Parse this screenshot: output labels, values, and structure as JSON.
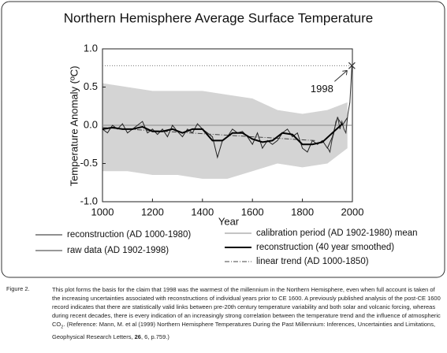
{
  "chart_data": {
    "type": "line",
    "title": "Northern Hemisphere Average Surface Temperature",
    "x_label": "Year",
    "y_label": "Temperature Anomaly (ºC)",
    "xlim": [
      1000,
      2000
    ],
    "xticks": [
      1000,
      1200,
      1400,
      1600,
      1800,
      2000
    ],
    "ylim": [
      -1,
      1
    ],
    "yticks": [
      {
        "value": -1,
        "label": "-1.0"
      },
      -0.5,
      {
        "value": 0,
        "label": "0.0"
      },
      0.5,
      {
        "value": 1,
        "label": "1.0"
      }
    ],
    "band": {
      "color": "#d4d4d4",
      "x": [
        1000,
        1100,
        1200,
        1300,
        1400,
        1500,
        1600,
        1700,
        1800,
        1900,
        1980
      ],
      "upper": [
        0.55,
        0.5,
        0.45,
        0.45,
        0.45,
        0.4,
        0.35,
        0.2,
        0.15,
        0.2,
        0.3
      ],
      "lower": [
        -0.6,
        -0.6,
        -0.65,
        -0.65,
        -0.7,
        -0.7,
        -0.6,
        -0.5,
        -0.55,
        -0.5,
        -0.3
      ]
    },
    "series": [
      {
        "name": "reconstruction (AD 1000-1980)",
        "color": "#222222",
        "style": "thin",
        "x": [
          1000,
          1020,
          1040,
          1060,
          1080,
          1100,
          1120,
          1140,
          1160,
          1180,
          1200,
          1220,
          1240,
          1260,
          1280,
          1300,
          1320,
          1340,
          1360,
          1380,
          1400,
          1420,
          1440,
          1460,
          1480,
          1500,
          1520,
          1540,
          1560,
          1580,
          1600,
          1620,
          1640,
          1660,
          1680,
          1700,
          1720,
          1740,
          1760,
          1780,
          1800,
          1820,
          1840,
          1860,
          1880,
          1900,
          1920,
          1940,
          1960,
          1980
        ],
        "values": [
          -0.05,
          -0.1,
          0.0,
          -0.05,
          0.02,
          -0.1,
          -0.05,
          0.0,
          0.05,
          -0.1,
          -0.05,
          -0.12,
          -0.05,
          -0.15,
          0.0,
          -0.08,
          -0.15,
          -0.05,
          -0.1,
          0.02,
          -0.05,
          -0.1,
          -0.15,
          -0.42,
          -0.2,
          -0.15,
          -0.05,
          -0.1,
          -0.08,
          -0.15,
          -0.25,
          -0.1,
          -0.3,
          -0.2,
          -0.25,
          -0.2,
          -0.1,
          -0.05,
          -0.15,
          -0.1,
          -0.3,
          -0.35,
          -0.2,
          -0.25,
          -0.2,
          -0.3,
          -0.15,
          0.1,
          0.0,
          0.1
        ]
      },
      {
        "name": "raw data (AD 1902-1998)",
        "color": "#333333",
        "style": "thin",
        "x": [
          1902,
          1910,
          1918,
          1926,
          1934,
          1942,
          1950,
          1958,
          1966,
          1974,
          1982,
          1990,
          1998
        ],
        "values": [
          -0.3,
          -0.35,
          -0.2,
          -0.1,
          0.05,
          0.1,
          -0.05,
          0.05,
          -0.05,
          -0.1,
          0.15,
          0.3,
          0.78
        ]
      },
      {
        "name": "calibration period (AD 1902-1980) mean",
        "color": "#888888",
        "style": "thin",
        "x": [
          1000,
          2000
        ],
        "values": [
          0,
          0
        ]
      },
      {
        "name": "reconstruction (40 year smoothed)",
        "color": "#000000",
        "style": "thick",
        "x": [
          1000,
          1040,
          1080,
          1120,
          1160,
          1200,
          1240,
          1280,
          1320,
          1360,
          1400,
          1440,
          1480,
          1520,
          1560,
          1600,
          1640,
          1680,
          1720,
          1760,
          1800,
          1840,
          1880,
          1920,
          1960
        ],
        "values": [
          -0.05,
          -0.03,
          -0.05,
          -0.05,
          -0.02,
          -0.08,
          -0.08,
          -0.05,
          -0.1,
          -0.05,
          -0.05,
          -0.2,
          -0.2,
          -0.1,
          -0.1,
          -0.18,
          -0.22,
          -0.2,
          -0.1,
          -0.12,
          -0.25,
          -0.25,
          -0.22,
          -0.1,
          0.02
        ]
      },
      {
        "name": "linear trend (AD 1000-1850)",
        "color": "#444444",
        "style": "dashdot",
        "x": [
          1000,
          1850
        ],
        "values": [
          -0.03,
          -0.2
        ]
      }
    ],
    "annotation": {
      "text": "1998",
      "x": 1998,
      "y": 0.78
    },
    "caption": {
      "label": "Figure 2.",
      "text_1": "This plot forms the basis for the claim that 1998 was the warmest of the millennium in the Northern Hemisphere, even when full account is taken of the increasing uncertainties associated with reconstructions of individual years prior to CE 1600. A previously published analysis of the post-CE 1600 record indicates that there are statistically valid links between pre-20th century temperature variability and both solar and volcanic forcing, whereas during recent decades, there is every indication of an increasingly strong correlation between the temperature trend and the influence of atmospheric CO",
      "subscript": "2",
      "text_2": ". (Reference: Mann, M. et al (1999) Northern Hemisphere Temperatures During the Past Millennium: Inferences, Uncertainties and Limitations, Geophysical Research Letters, ",
      "bold": "26",
      "text_3": ", 6, p.759.)"
    }
  }
}
